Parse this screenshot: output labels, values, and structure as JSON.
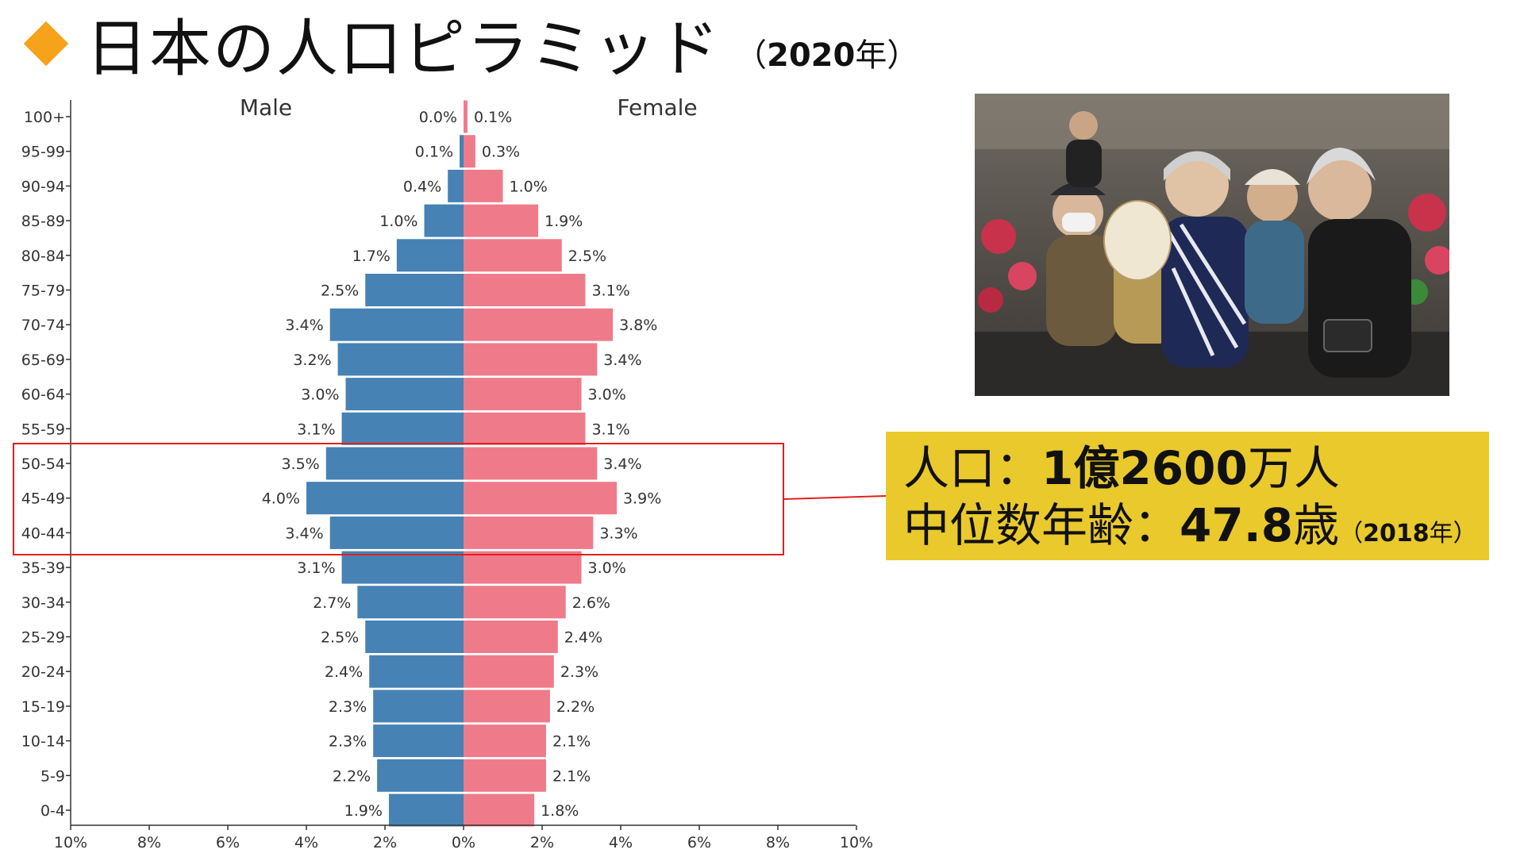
{
  "title": {
    "text": "日本の人口ピラミッド",
    "year_open": "（",
    "year": "2020",
    "year_suffix": "年",
    "year_close": "）",
    "marker_color": "#f7a21b"
  },
  "info": {
    "pop_label": "人口：",
    "pop_value": "1億2600",
    "pop_unit": "万人",
    "median_label": "中位数年齢：",
    "median_value": "47.8",
    "median_unit": "歳",
    "median_note_open": "（",
    "median_note_year": "2018",
    "median_note_suffix": "年",
    "median_note_close": "）",
    "box_color": "#e9c92c"
  },
  "photo": {
    "subject": "elderly-people-photo"
  },
  "chart_data": {
    "type": "bar",
    "orientation": "horizontal-pyramid",
    "left_label": "Male",
    "right_label": "Female",
    "categories": [
      "100+",
      "95-99",
      "90-94",
      "85-89",
      "80-84",
      "75-79",
      "70-74",
      "65-69",
      "60-64",
      "55-59",
      "50-54",
      "45-49",
      "40-44",
      "35-39",
      "30-34",
      "25-29",
      "20-24",
      "15-19",
      "10-14",
      "5-9",
      "0-4"
    ],
    "series": [
      {
        "name": "Male",
        "color": "#4682b4",
        "values": [
          0.0,
          0.1,
          0.4,
          1.0,
          1.7,
          2.5,
          3.4,
          3.2,
          3.0,
          3.1,
          3.5,
          4.0,
          3.4,
          3.1,
          2.7,
          2.5,
          2.4,
          2.3,
          2.3,
          2.2,
          1.9
        ],
        "labels": [
          "0.0%",
          "0.1%",
          "0.4%",
          "1.0%",
          "1.7%",
          "2.5%",
          "3.4%",
          "3.2%",
          "3.0%",
          "3.1%",
          "3.5%",
          "4.0%",
          "3.4%",
          "3.1%",
          "2.7%",
          "2.5%",
          "2.4%",
          "2.3%",
          "2.3%",
          "2.2%",
          "1.9%"
        ]
      },
      {
        "name": "Female",
        "color": "#ef7b8a",
        "values": [
          0.1,
          0.3,
          1.0,
          1.9,
          2.5,
          3.1,
          3.8,
          3.4,
          3.0,
          3.1,
          3.4,
          3.9,
          3.3,
          3.0,
          2.6,
          2.4,
          2.3,
          2.2,
          2.1,
          2.1,
          1.8
        ],
        "labels": [
          "0.1%",
          "0.3%",
          "1.0%",
          "1.9%",
          "2.5%",
          "3.1%",
          "3.8%",
          "3.4%",
          "3.0%",
          "3.1%",
          "3.4%",
          "3.9%",
          "3.3%",
          "3.0%",
          "2.6%",
          "2.4%",
          "2.3%",
          "2.2%",
          "2.1%",
          "2.1%",
          "1.8%"
        ]
      }
    ],
    "x_ticks": [
      "10%",
      "8%",
      "6%",
      "4%",
      "2%",
      "0%",
      "2%",
      "4%",
      "6%",
      "8%",
      "10%"
    ],
    "x_tick_values": [
      -10,
      -8,
      -6,
      -4,
      -2,
      0,
      2,
      4,
      6,
      8,
      10
    ],
    "xlim": [
      -10,
      10
    ],
    "highlight": {
      "categories": [
        "50-54",
        "45-49",
        "40-44"
      ],
      "color": "#e02020"
    }
  }
}
